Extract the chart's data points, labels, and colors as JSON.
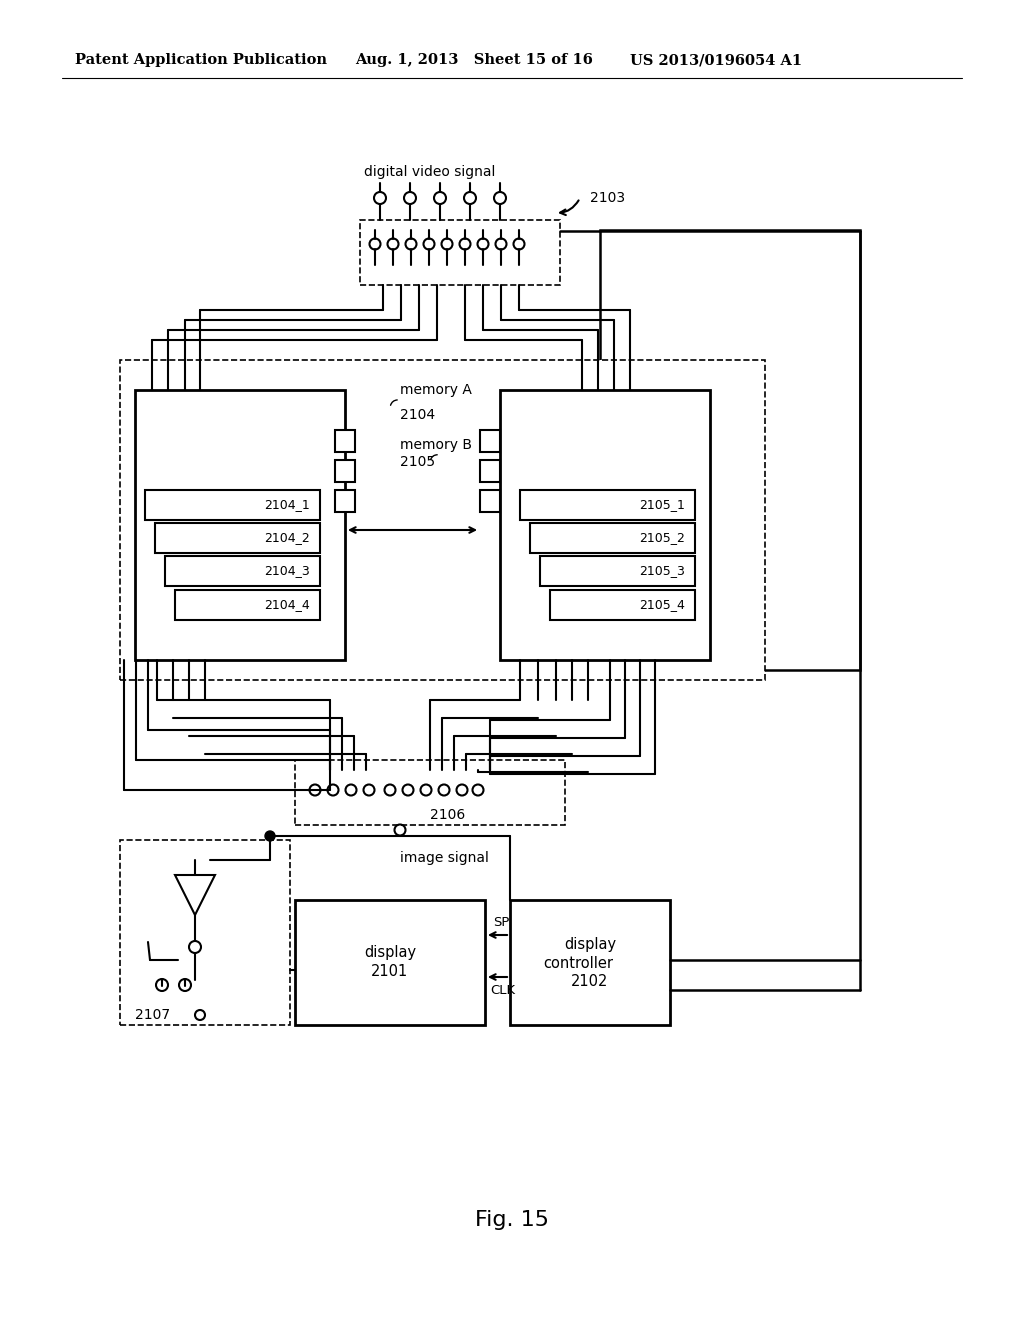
{
  "bg_color": "#ffffff",
  "header_left": "Patent Application Publication",
  "header_mid": "Aug. 1, 2013   Sheet 15 of 16",
  "header_right": "US 2013/0196054 A1",
  "fig_label": "Fig. 15"
}
